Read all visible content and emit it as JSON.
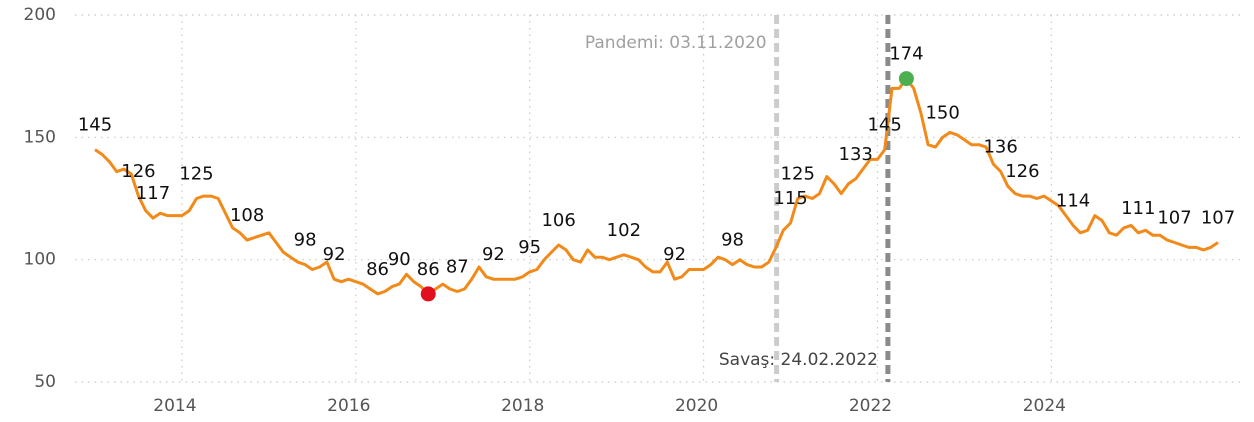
{
  "chart_data": {
    "type": "line",
    "x": [
      2013,
      2013.083,
      2013.167,
      2013.25,
      2013.333,
      2013.417,
      2013.5,
      2013.583,
      2013.667,
      2013.75,
      2013.833,
      2013.917,
      2014,
      2014.083,
      2014.167,
      2014.25,
      2014.333,
      2014.417,
      2014.5,
      2014.583,
      2014.667,
      2014.75,
      2014.833,
      2014.917,
      2015,
      2015.083,
      2015.167,
      2015.25,
      2015.333,
      2015.417,
      2015.5,
      2015.583,
      2015.667,
      2015.75,
      2015.833,
      2015.917,
      2016,
      2016.083,
      2016.167,
      2016.25,
      2016.333,
      2016.417,
      2016.5,
      2016.583,
      2016.667,
      2016.75,
      2016.833,
      2016.917,
      2017,
      2017.083,
      2017.167,
      2017.25,
      2017.333,
      2017.417,
      2017.5,
      2017.583,
      2017.667,
      2017.75,
      2017.833,
      2017.917,
      2018,
      2018.083,
      2018.167,
      2018.25,
      2018.333,
      2018.417,
      2018.5,
      2018.583,
      2018.667,
      2018.75,
      2018.833,
      2018.917,
      2019,
      2019.083,
      2019.167,
      2019.25,
      2019.333,
      2019.417,
      2019.5,
      2019.583,
      2019.667,
      2019.75,
      2019.833,
      2019.917,
      2020,
      2020.083,
      2020.167,
      2020.25,
      2020.333,
      2020.417,
      2020.5,
      2020.583,
      2020.667,
      2020.75,
      2020.833,
      2020.917,
      2021,
      2021.083,
      2021.167,
      2021.25,
      2021.333,
      2021.417,
      2021.5,
      2021.583,
      2021.667,
      2021.75,
      2021.833,
      2021.917,
      2022,
      2022.083,
      2022.167,
      2022.25,
      2022.333,
      2022.417,
      2022.5,
      2022.583,
      2022.667,
      2022.75,
      2022.833,
      2022.917,
      2023,
      2023.083,
      2023.167,
      2023.25,
      2023.333,
      2023.417,
      2023.5,
      2023.583,
      2023.667,
      2023.75,
      2023.833,
      2023.917,
      2024,
      2024.083,
      2024.167,
      2024.25,
      2024.333,
      2024.417,
      2024.5,
      2024.583,
      2024.667,
      2024.75,
      2024.833,
      2024.917,
      2025,
      2025.083,
      2025.167,
      2025.25,
      2025.333,
      2025.417,
      2025.5,
      2025.583,
      2025.667,
      2025.75,
      2025.833,
      2025.917
    ],
    "series": [
      {
        "color": "#f28a1a",
        "values": [
          145,
          143,
          140,
          136,
          137,
          135,
          126,
          120,
          117,
          119,
          118,
          118,
          118,
          120,
          125,
          126,
          126,
          125,
          119,
          113,
          111,
          108,
          109,
          110,
          111,
          107,
          103,
          101,
          99,
          98,
          96,
          97,
          99,
          92,
          91,
          92,
          91,
          90,
          88,
          86,
          87,
          89,
          90,
          94,
          91,
          89,
          86,
          88,
          90,
          88,
          87,
          88,
          92,
          97,
          93,
          92,
          92,
          92,
          92,
          93,
          95,
          96,
          100,
          103,
          106,
          104,
          100,
          99,
          104,
          101,
          101,
          100,
          101,
          102,
          101,
          100,
          97,
          95,
          95,
          99,
          92,
          93,
          96,
          96,
          96,
          98,
          101,
          100,
          98,
          100,
          98,
          97,
          97,
          99,
          105,
          112,
          115,
          125,
          126,
          125,
          127,
          134,
          131,
          127,
          131,
          133,
          137,
          141,
          141,
          145,
          170,
          170,
          174,
          170,
          160,
          147,
          146,
          150,
          152,
          151,
          149,
          147,
          147,
          146,
          139,
          136,
          130,
          127,
          126,
          126,
          125,
          126,
          124,
          122,
          118,
          114,
          111,
          112,
          118,
          116,
          111,
          110,
          113,
          114,
          111,
          112,
          110,
          110,
          108,
          107,
          106,
          105,
          105,
          104,
          105,
          107
        ],
        "value_labels": [
          "145",
          null,
          null,
          null,
          null,
          null,
          "126",
          null,
          "117",
          null,
          null,
          null,
          null,
          null,
          "125",
          null,
          null,
          null,
          null,
          null,
          null,
          "108",
          null,
          null,
          null,
          null,
          null,
          null,
          null,
          "98",
          null,
          null,
          null,
          "92",
          null,
          null,
          null,
          null,
          null,
          "86",
          null,
          null,
          "90",
          null,
          null,
          null,
          "86",
          null,
          null,
          null,
          "87",
          null,
          null,
          null,
          null,
          "92",
          null,
          null,
          null,
          null,
          "95",
          null,
          null,
          null,
          "106",
          null,
          null,
          null,
          null,
          null,
          null,
          null,
          null,
          "102",
          null,
          null,
          null,
          null,
          null,
          null,
          "92",
          null,
          null,
          null,
          null,
          null,
          null,
          null,
          "98",
          null,
          null,
          null,
          null,
          null,
          null,
          null,
          "115",
          "125",
          null,
          null,
          null,
          null,
          null,
          null,
          null,
          "133",
          null,
          null,
          null,
          "145",
          null,
          null,
          "174",
          null,
          null,
          null,
          null,
          "150",
          null,
          null,
          null,
          null,
          null,
          null,
          null,
          "136",
          null,
          null,
          "126",
          null,
          null,
          null,
          null,
          null,
          null,
          "114",
          null,
          null,
          null,
          null,
          null,
          null,
          null,
          null,
          "111",
          null,
          null,
          null,
          null,
          "107",
          null,
          null,
          null,
          null,
          null,
          "107"
        ]
      }
    ],
    "min_marker_color": "#e0101c",
    "max_marker_color": "#4caf50",
    "annotations": [
      {
        "text": "Pandemi: 03.11.2020",
        "x": 2020.84,
        "color": "#cccccc",
        "text_color": "#a0a0a0",
        "position": "top"
      },
      {
        "text": "Savaş: 24.02.2022",
        "x": 2022.12,
        "color": "#8a8a8a",
        "text_color": "#444444",
        "position": "bottom"
      }
    ],
    "xlim": [
      2012.77,
      2026.17
    ],
    "xticks": [
      2014,
      2016,
      2018,
      2020,
      2022,
      2024
    ],
    "ylim": [
      50,
      200
    ],
    "yticks": [
      50,
      100,
      150,
      200
    ],
    "grid": true
  }
}
